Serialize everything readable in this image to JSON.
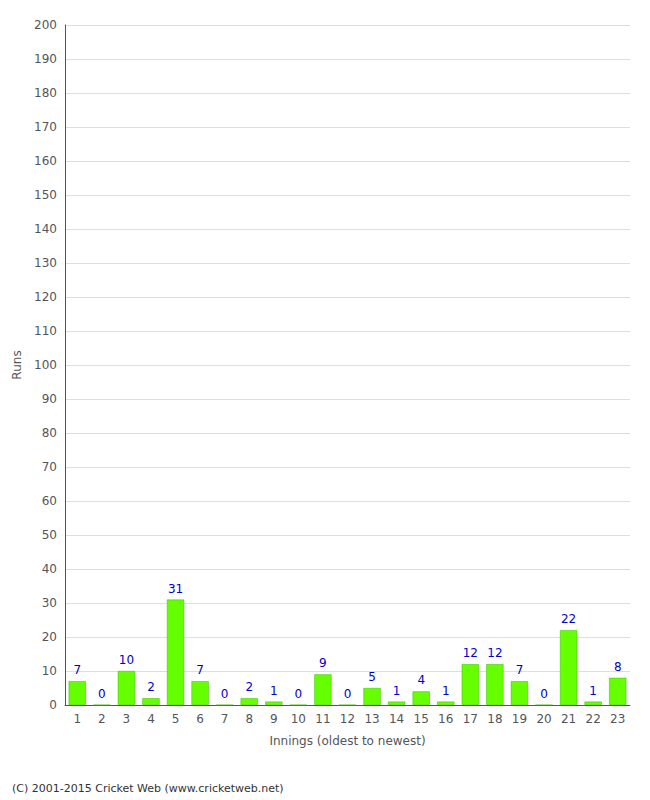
{
  "chart_data": {
    "type": "bar",
    "categories": [
      "1",
      "2",
      "3",
      "4",
      "5",
      "6",
      "7",
      "8",
      "9",
      "10",
      "11",
      "12",
      "13",
      "14",
      "15",
      "16",
      "17",
      "18",
      "19",
      "20",
      "21",
      "22",
      "23"
    ],
    "values": [
      7,
      0,
      10,
      2,
      31,
      7,
      0,
      2,
      1,
      0,
      9,
      0,
      5,
      1,
      4,
      1,
      12,
      12,
      7,
      0,
      22,
      1,
      8
    ],
    "color": "#66ff00",
    "xlabel": "Innings (oldest to newest)",
    "ylabel": "Runs",
    "ylim": [
      0,
      200
    ],
    "yticks": [
      0,
      10,
      20,
      30,
      40,
      50,
      60,
      70,
      80,
      90,
      100,
      110,
      120,
      130,
      140,
      150,
      160,
      170,
      180,
      190,
      200
    ],
    "grid": true,
    "data_labels": true,
    "annotations": [
      "(C) 2001-2015 Cricket Web (www.cricketweb.net)"
    ]
  }
}
